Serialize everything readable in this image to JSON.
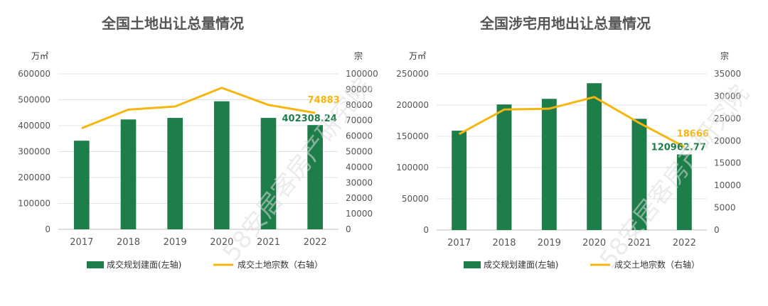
{
  "watermark": "58安居客房产研究院",
  "colors": {
    "bar": "#1e7e4a",
    "line": "#f5b60f",
    "grid": "#e3e3e3",
    "axis": "#bfbfbf"
  },
  "chart_data": [
    {
      "type": "bar",
      "title": "全国土地出让总量情况",
      "left_unit": "万㎡",
      "right_unit": "宗",
      "categories": [
        "2017",
        "2018",
        "2019",
        "2020",
        "2021",
        "2022"
      ],
      "left_ticks": [
        "0",
        "100000",
        "200000",
        "300000",
        "400000",
        "500000",
        "600000"
      ],
      "right_ticks": [
        "0",
        "10000",
        "20000",
        "30000",
        "40000",
        "50000",
        "60000",
        "70000",
        "80000",
        "90000",
        "100000"
      ],
      "ylim_left": [
        0,
        600000
      ],
      "ylim_right": [
        0,
        100000
      ],
      "series": [
        {
          "name": "成交规划建面(左轴)",
          "type": "bar",
          "axis": "left",
          "values": [
            342000,
            424000,
            430000,
            494000,
            430000,
            402308.24
          ]
        },
        {
          "name": "成交土地宗数（右轴）",
          "type": "line",
          "axis": "right",
          "values": [
            65000,
            77000,
            79000,
            91000,
            80000,
            74883
          ]
        }
      ],
      "data_labels": {
        "bar_last": "402308.24",
        "line_last": "74883"
      },
      "legend_position": "bottom",
      "grid": true
    },
    {
      "type": "bar",
      "title": "全国涉宅用地出让总量情况",
      "left_unit": "万㎡",
      "right_unit": "宗",
      "categories": [
        "2017",
        "2018",
        "2019",
        "2020",
        "2021",
        "2022"
      ],
      "left_ticks": [
        "0",
        "50000",
        "100000",
        "150000",
        "200000",
        "250000"
      ],
      "right_ticks": [
        "0",
        "5000",
        "10000",
        "15000",
        "20000",
        "25000",
        "30000",
        "35000"
      ],
      "ylim_left": [
        0,
        250000
      ],
      "ylim_right": [
        0,
        35000
      ],
      "series": [
        {
          "name": "成交规划建面(左轴)",
          "type": "bar",
          "axis": "left",
          "values": [
            159000,
            201000,
            210000,
            235000,
            178000,
            120962.77
          ]
        },
        {
          "name": "成交土地宗数（右轴）",
          "type": "line",
          "axis": "right",
          "values": [
            21500,
            27000,
            27200,
            29800,
            24000,
            18666
          ]
        }
      ],
      "data_labels": {
        "bar_last": "120962.77",
        "line_last": "18666"
      },
      "legend_position": "bottom",
      "grid": true
    }
  ]
}
